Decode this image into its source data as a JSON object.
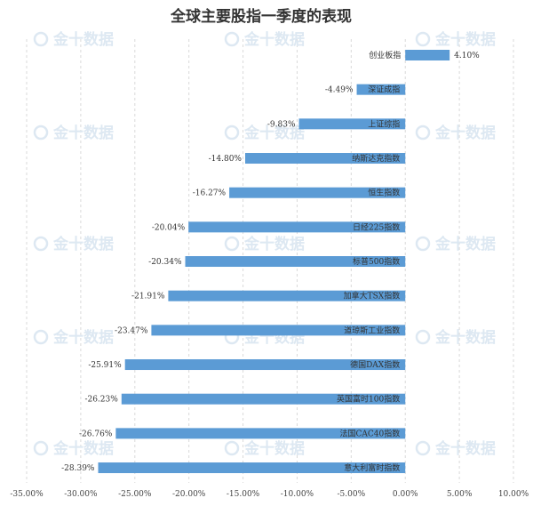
{
  "chart_data": {
    "type": "bar",
    "orientation": "horizontal",
    "title": "全球主要股指一季度的表现",
    "categories": [
      "创业板指",
      "深证成指",
      "上证综指",
      "纳斯达克指数",
      "恒生指数",
      "日经225指数",
      "标普500指数",
      "加拿大TSX指数",
      "道琼斯工业指数",
      "德国DAX指数",
      "英国富时100指数",
      "法国CAC40指数",
      "意大利富时指数"
    ],
    "values": [
      4.1,
      -4.49,
      -9.83,
      -14.8,
      -16.27,
      -20.04,
      -20.34,
      -21.91,
      -23.47,
      -25.91,
      -26.23,
      -26.76,
      -28.39
    ],
    "value_labels": [
      "4.10%",
      "-4.49%",
      "-9.83%",
      "-14.80%",
      "-16.27%",
      "-20.04%",
      "-20.34%",
      "-21.91%",
      "-23.47%",
      "-25.91%",
      "-26.23%",
      "-26.76%",
      "-28.39%"
    ],
    "x_ticks": [
      -35,
      -30,
      -25,
      -20,
      -15,
      -10,
      -5,
      0,
      5,
      10
    ],
    "x_tick_labels": [
      "-35.00%",
      "-30.00%",
      "-25.00%",
      "-20.00%",
      "-15.00%",
      "-10.00%",
      "-5.00%",
      "0.00%",
      "5.00%",
      "10.00%"
    ],
    "xlim": [
      -35,
      10
    ],
    "grid": true,
    "legend": "none",
    "bar_color": "#5b9bd5"
  },
  "watermark": {
    "text": "金十数据"
  }
}
